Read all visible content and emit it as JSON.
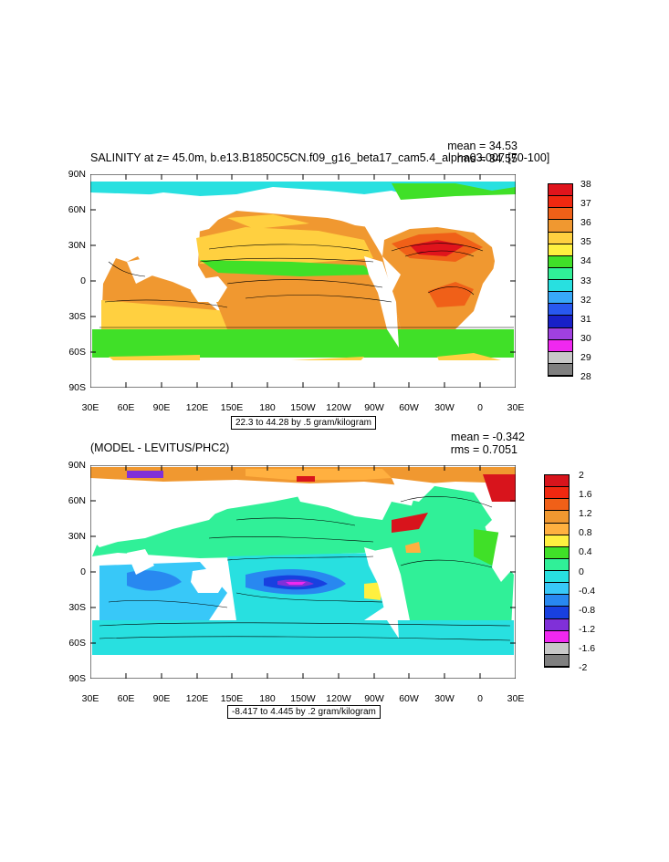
{
  "panels": [
    {
      "id": "top",
      "title": "SALINITY at z=  45.0m, b.e13.B1850C5CN.f09_g16_beta17_cam5.4_alpha03.007 [70-100]",
      "stats": [
        "mean = 34.53",
        "rms = 34.55"
      ],
      "info": "22.3 to 44.28 by .5 gram/kilogram",
      "lat_labels": [
        "90N",
        "60N",
        "30N",
        "0",
        "30S",
        "60S",
        "90S"
      ],
      "lon_labels": [
        "30E",
        "60E",
        "90E",
        "120E",
        "150E",
        "180",
        "150W",
        "120W",
        "90W",
        "60W",
        "30W",
        "0",
        "30E"
      ],
      "colorbar": {
        "labels": [
          "38",
          "37",
          "36",
          "35",
          "34",
          "33",
          "32",
          "31",
          "30",
          "29",
          "28"
        ],
        "colors": [
          "#e0141c",
          "#f02810",
          "#f06018",
          "#f09830",
          "#ffd040",
          "#fff040",
          "#40e028",
          "#30f098",
          "#28e0e0",
          "#38a8f8",
          "#2858f0",
          "#1820c8",
          "#a040e0",
          "#f028f0",
          "#c8c8c8",
          "#808080"
        ]
      }
    },
    {
      "id": "bottom",
      "title": "(MODEL - LEVITUS/PHC2)",
      "stats": [
        "mean = -0.342",
        "rms = 0.7051"
      ],
      "info": "-8.417 to 4.445 by .2 gram/kilogram",
      "lat_labels": [
        "90N",
        "60N",
        "30N",
        "0",
        "30S",
        "60S",
        "90S"
      ],
      "lon_labels": [
        "30E",
        "60E",
        "90E",
        "120E",
        "150E",
        "180",
        "150W",
        "120W",
        "90W",
        "60W",
        "30W",
        "0",
        "30E"
      ],
      "colorbar": {
        "labels": [
          "2",
          "1.6",
          "1.2",
          "0.8",
          "0.4",
          "0",
          "-0.4",
          "-0.8",
          "-1.2",
          "-1.6",
          "-2"
        ],
        "colors": [
          "#d8141c",
          "#f02810",
          "#f06018",
          "#f09830",
          "#ffb040",
          "#fff040",
          "#40e028",
          "#30f098",
          "#28e0e0",
          "#38c8f8",
          "#2888f0",
          "#1840e0",
          "#8030d8",
          "#f028f0",
          "#c8c8c8",
          "#808080"
        ]
      }
    }
  ]
}
